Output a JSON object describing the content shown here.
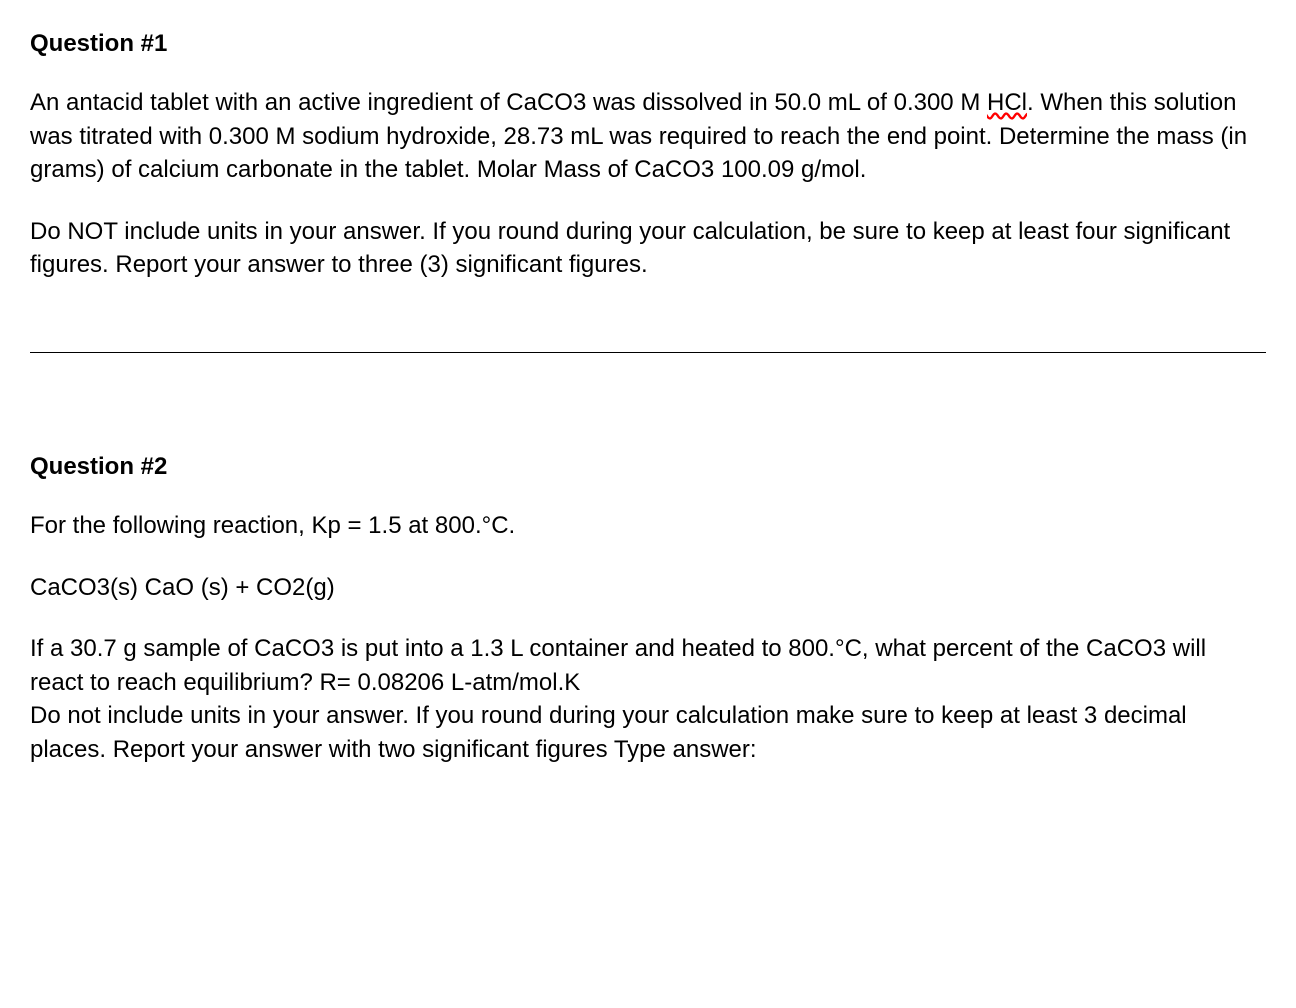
{
  "question1": {
    "title": "Question #1",
    "body_part1": "An antacid tablet with an active ingredient of CaCO3 was dissolved in 50.0 mL of 0.300 M ",
    "body_spellcheck": "HCl",
    "body_part2": ". When this solution was titrated with 0.300 M sodium hydroxide, 28.73 mL was required to reach the end point. Determine the mass (in grams) of calcium carbonate in the tablet. Molar Mass of CaCO3 100.09 g/mol.",
    "instructions": "Do NOT include units in your answer. If you round during your calculation, be sure to keep at least four significant figures. Report your answer to three (3) significant figures."
  },
  "question2": {
    "title": "Question #2",
    "intro": "For the following reaction, Kp = 1.5 at 800.°C.",
    "equation": "CaCO3(s) CaO (s) + CO2(g)",
    "body": "If a 30.7 g sample of CaCO3 is put into a 1.3 L container and heated to 800.°C, what percent of the CaCO3 will react to reach equilibrium? R= 0.08206 L-atm/mol.K",
    "instructions": "Do not include units in your answer. If you round during your calculation make sure to keep at least 3 decimal places. Report your answer with two significant figures Type answer:"
  }
}
